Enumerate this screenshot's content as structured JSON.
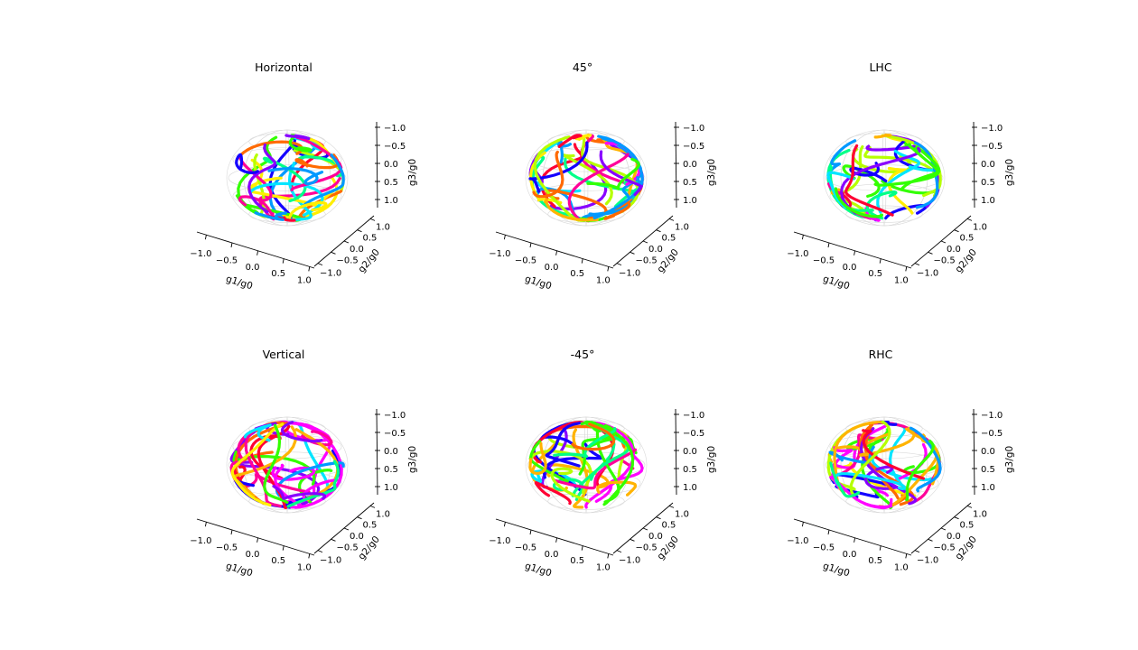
{
  "chart_data": [
    {
      "type": "scatter",
      "title": "Horizontal",
      "xlabel": "g1/g0",
      "ylabel": "g2/g0",
      "zlabel": "g3/g0",
      "xlim": [
        -1,
        1
      ],
      "ylim": [
        -1,
        1
      ],
      "zlim": [
        -1,
        1
      ],
      "xticks": [
        "−1.0",
        "−0.5",
        "0.0",
        "0.5",
        "1.0"
      ],
      "yticks": [
        "−1.0",
        "−0.5",
        "0.0",
        "0.5",
        "1.0"
      ],
      "zticks": [
        "−1.0",
        "−0.5",
        "0.0",
        "0.5",
        "1.0"
      ],
      "grid": false
    },
    {
      "type": "scatter",
      "title": "45°",
      "xlabel": "g1/g0",
      "ylabel": "g2/g0",
      "zlabel": "g3/g0",
      "xlim": [
        -1,
        1
      ],
      "ylim": [
        -1,
        1
      ],
      "zlim": [
        -1,
        1
      ],
      "xticks": [
        "−1.0",
        "−0.5",
        "0.0",
        "0.5",
        "1.0"
      ],
      "yticks": [
        "−1.0",
        "−0.5",
        "0.0",
        "0.5",
        "1.0"
      ],
      "zticks": [
        "−1.0",
        "−0.5",
        "0.0",
        "0.5",
        "1.0"
      ],
      "grid": false
    },
    {
      "type": "scatter",
      "title": "LHC",
      "xlabel": "g1/g0",
      "ylabel": "g2/g0",
      "zlabel": "g3/g0",
      "xlim": [
        -1,
        1
      ],
      "ylim": [
        -1,
        1
      ],
      "zlim": [
        -1,
        1
      ],
      "xticks": [
        "−1.0",
        "−0.5",
        "0.0",
        "0.5",
        "1.0"
      ],
      "yticks": [
        "−1.0",
        "−0.5",
        "0.0",
        "0.5",
        "1.0"
      ],
      "zticks": [
        "−1.0",
        "−0.5",
        "0.0",
        "0.5",
        "1.0"
      ],
      "grid": false
    },
    {
      "type": "scatter",
      "title": "Vertical",
      "xlabel": "g1/g0",
      "ylabel": "g2/g0",
      "zlabel": "g3/g0",
      "xlim": [
        -1,
        1
      ],
      "ylim": [
        -1,
        1
      ],
      "zlim": [
        -1,
        1
      ],
      "xticks": [
        "−1.0",
        "−0.5",
        "0.0",
        "0.5",
        "1.0"
      ],
      "yticks": [
        "−1.0",
        "−0.5",
        "0.0",
        "0.5",
        "1.0"
      ],
      "zticks": [
        "−1.0",
        "−0.5",
        "0.0",
        "0.5",
        "1.0"
      ],
      "grid": false
    },
    {
      "type": "scatter",
      "title": "-45°",
      "xlabel": "g1/g0",
      "ylabel": "g2/g0",
      "zlabel": "g3/g0",
      "xlim": [
        -1,
        1
      ],
      "ylim": [
        -1,
        1
      ],
      "zlim": [
        -1,
        1
      ],
      "xticks": [
        "−1.0",
        "−0.5",
        "0.0",
        "0.5",
        "1.0"
      ],
      "yticks": [
        "−1.0",
        "−0.5",
        "0.0",
        "0.5",
        "1.0"
      ],
      "zticks": [
        "−1.0",
        "−0.5",
        "0.0",
        "0.5",
        "1.0"
      ],
      "grid": false
    },
    {
      "type": "scatter",
      "title": "RHC",
      "xlabel": "g1/g0",
      "ylabel": "g2/g0",
      "zlabel": "g3/g0",
      "xlim": [
        -1,
        1
      ],
      "ylim": [
        -1,
        1
      ],
      "zlim": [
        -1,
        1
      ],
      "xticks": [
        "−1.0",
        "−0.5",
        "0.0",
        "0.5",
        "1.0"
      ],
      "yticks": [
        "−1.0",
        "−0.5",
        "0.0",
        "0.5",
        "1.0"
      ],
      "zticks": [
        "−1.0",
        "−0.5",
        "0.0",
        "0.5",
        "1.0"
      ],
      "grid": false
    }
  ],
  "colors": {
    "trajectory_palette": [
      "#ff0033",
      "#ff6a00",
      "#ffb300",
      "#ffee00",
      "#b6ff00",
      "#33ff00",
      "#00ff88",
      "#00e5ff",
      "#0099ff",
      "#1400ff",
      "#8800ff",
      "#ff00ff",
      "#ff0099"
    ],
    "sphere_grid": "#d9d9d9",
    "axis": "#000000"
  }
}
